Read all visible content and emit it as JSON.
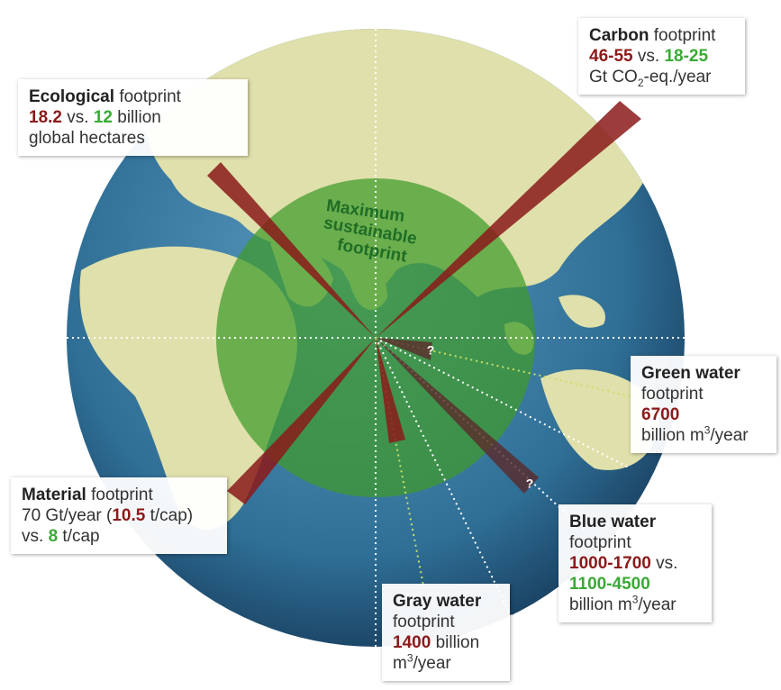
{
  "center_label": [
    "Maximum",
    "sustainable",
    "footprint"
  ],
  "ecological": {
    "name": "Ecological",
    "word": "footprint",
    "current": "18.2",
    "vs": "vs.",
    "limit": "12",
    "unit": "billion",
    "unit2": "global hectares"
  },
  "carbon": {
    "name": "Carbon",
    "word": "footprint",
    "current": "46-55",
    "vs": "vs.",
    "limit": "18-25",
    "unit": "Gt CO",
    "sub": "2",
    "unit2": "-eq./year"
  },
  "green_water": {
    "name": "Green water",
    "word": "footprint",
    "current": "6700",
    "unit": "billion m",
    "sup": "3",
    "unit2": "/year"
  },
  "material": {
    "name": "Material",
    "word": "footprint",
    "total": "70 Gt/year (",
    "current": "10.5",
    "unit": "t/cap)",
    "vs": "vs.",
    "limit": "8",
    "unit2": "t/cap"
  },
  "blue_water": {
    "name": "Blue water",
    "word": "footprint",
    "current": "1000-1700",
    "vs": "vs.",
    "limit": "1100-4500",
    "unit": "billion m",
    "sup": "3",
    "unit2": "/year"
  },
  "gray_water": {
    "name": "Gray water",
    "word": "footprint",
    "current": "1400",
    "unit": "billion",
    "unit2": "m",
    "sup": "3",
    "unit3": "/year"
  },
  "question_marks": [
    "?",
    "?"
  ]
}
